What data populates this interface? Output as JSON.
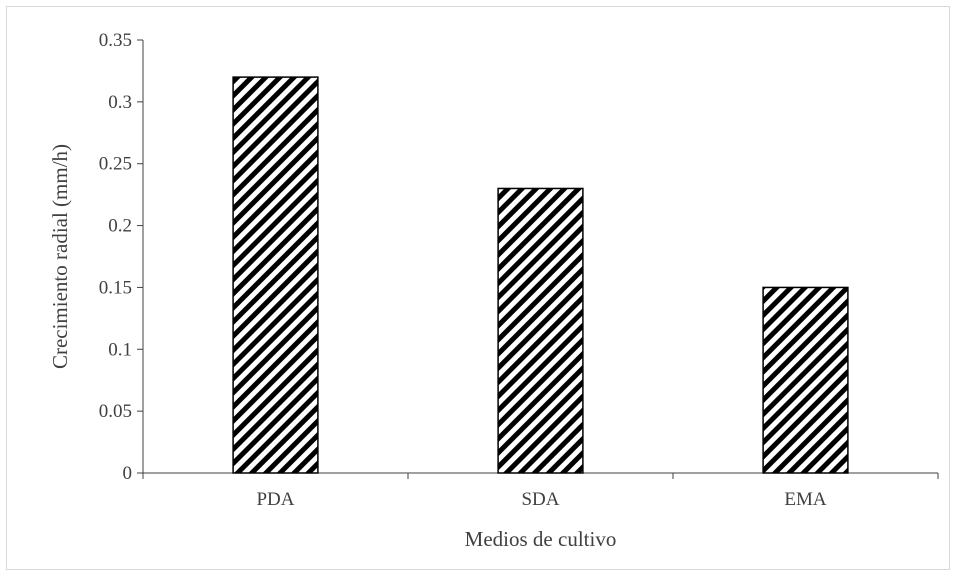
{
  "chart_data": {
    "type": "bar",
    "title": "",
    "xlabel": "Medios de cultivo",
    "ylabel": "Crecimiento radial (mm/h)",
    "categories": [
      "PDA",
      "SDA",
      "EMA"
    ],
    "values": [
      0.32,
      0.23,
      0.15
    ],
    "ylim": [
      0,
      0.35
    ],
    "yticks": [
      "0",
      "0.05",
      "0.1",
      "0.15",
      "0.2",
      "0.25",
      "0.3",
      "0.35"
    ],
    "grid": false,
    "legend": "none",
    "bar_fill": "diagonal-hatch",
    "colors": {
      "bar_stroke": "#000000",
      "hatch": "#000000",
      "axis": "#404040",
      "text": "#404040",
      "frame": "#d9d9d9"
    }
  }
}
